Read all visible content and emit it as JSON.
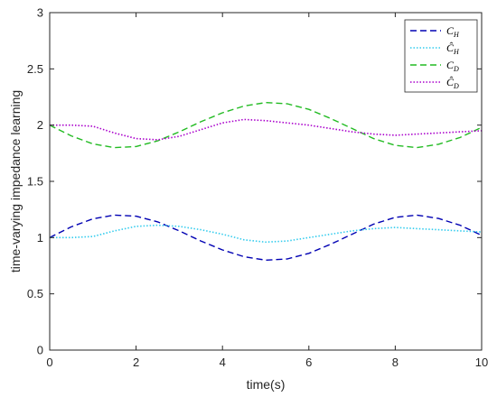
{
  "chart_data": {
    "type": "line",
    "xlabel": "time(s)",
    "ylabel": "time-varying impedance learning",
    "xlim": [
      0,
      10
    ],
    "ylim": [
      0,
      3
    ],
    "xticks": [
      0,
      2,
      4,
      6,
      8,
      10
    ],
    "yticks": [
      0,
      0.5,
      1,
      1.5,
      2,
      2.5,
      3
    ],
    "xtick_labels": [
      "0",
      "2",
      "4",
      "6",
      "8",
      "10"
    ],
    "ytick_labels": [
      "0",
      "0.5",
      "1",
      "1.5",
      "2",
      "2.5",
      "3"
    ],
    "grid": false,
    "legend_position": "top-right",
    "series": [
      {
        "name": "C_H",
        "legend": {
          "base": "C",
          "hat": false,
          "sub": "H"
        },
        "color": "#0000b3",
        "dash": "dashed",
        "x": [
          0,
          0.5,
          1,
          1.5,
          2,
          2.5,
          3,
          3.5,
          4,
          4.5,
          5,
          5.5,
          6,
          6.5,
          7,
          7.5,
          8,
          8.5,
          9,
          9.5,
          10
        ],
        "y": [
          1.0,
          1.096,
          1.167,
          1.2,
          1.19,
          1.14,
          1.06,
          0.97,
          0.89,
          0.83,
          0.8,
          0.81,
          0.86,
          0.94,
          1.03,
          1.12,
          1.18,
          1.2,
          1.17,
          1.11,
          1.02
        ]
      },
      {
        "name": "Ĉ_H",
        "legend": {
          "base": "C",
          "hat": true,
          "sub": "H"
        },
        "color": "#33ccee",
        "dash": "dotted",
        "x": [
          0,
          0.5,
          1,
          1.5,
          2,
          2.5,
          3,
          3.5,
          4,
          4.5,
          5,
          5.5,
          6,
          6.5,
          7,
          7.5,
          8,
          8.5,
          9,
          9.5,
          10
        ],
        "y": [
          1.0,
          1.0,
          1.01,
          1.06,
          1.1,
          1.11,
          1.1,
          1.07,
          1.03,
          0.98,
          0.96,
          0.97,
          1.0,
          1.03,
          1.06,
          1.08,
          1.09,
          1.08,
          1.07,
          1.06,
          1.05
        ]
      },
      {
        "name": "C_D",
        "legend": {
          "base": "C",
          "hat": false,
          "sub": "D"
        },
        "color": "#22bb22",
        "dash": "dashed",
        "x": [
          0,
          0.5,
          1,
          1.5,
          2,
          2.5,
          3,
          3.5,
          4,
          4.5,
          5,
          5.5,
          6,
          6.5,
          7,
          7.5,
          8,
          8.5,
          9,
          9.5,
          10
        ],
        "y": [
          2.0,
          1.904,
          1.833,
          1.8,
          1.81,
          1.86,
          1.94,
          2.03,
          2.11,
          2.17,
          2.2,
          2.19,
          2.14,
          2.06,
          1.97,
          1.88,
          1.82,
          1.8,
          1.83,
          1.89,
          1.98
        ]
      },
      {
        "name": "Ĉ_D",
        "legend": {
          "base": "C",
          "hat": true,
          "sub": "D"
        },
        "color": "#aa00cc",
        "dash": "dotted",
        "x": [
          0,
          0.5,
          1,
          1.5,
          2,
          2.5,
          3,
          3.5,
          4,
          4.5,
          5,
          5.5,
          6,
          6.5,
          7,
          7.5,
          8,
          8.5,
          9,
          9.5,
          10
        ],
        "y": [
          2.0,
          2.0,
          1.99,
          1.93,
          1.88,
          1.87,
          1.9,
          1.96,
          2.02,
          2.05,
          2.04,
          2.02,
          2.0,
          1.97,
          1.94,
          1.92,
          1.91,
          1.92,
          1.93,
          1.94,
          1.95
        ]
      }
    ]
  }
}
